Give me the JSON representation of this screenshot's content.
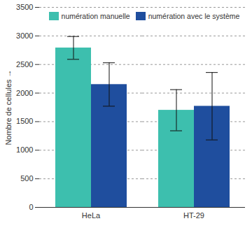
{
  "chart_data": {
    "type": "bar",
    "ylabel": "Nombre de cellules",
    "categories": [
      "HeLa",
      "HT-29"
    ],
    "series": [
      {
        "name": "numération manuelle",
        "color": "#3dbfae",
        "values": [
          2790,
          1700
        ],
        "errors": [
          200,
          360
        ]
      },
      {
        "name": "numération avec le système",
        "color": "#1f4e9e",
        "values": [
          2150,
          1770
        ],
        "errors": [
          380,
          590
        ]
      }
    ],
    "ylim": [
      0,
      3500
    ],
    "yticks": [
      0,
      500,
      1000,
      1500,
      2000,
      2500,
      3000,
      3500
    ],
    "grid": true,
    "legend": "top"
  }
}
